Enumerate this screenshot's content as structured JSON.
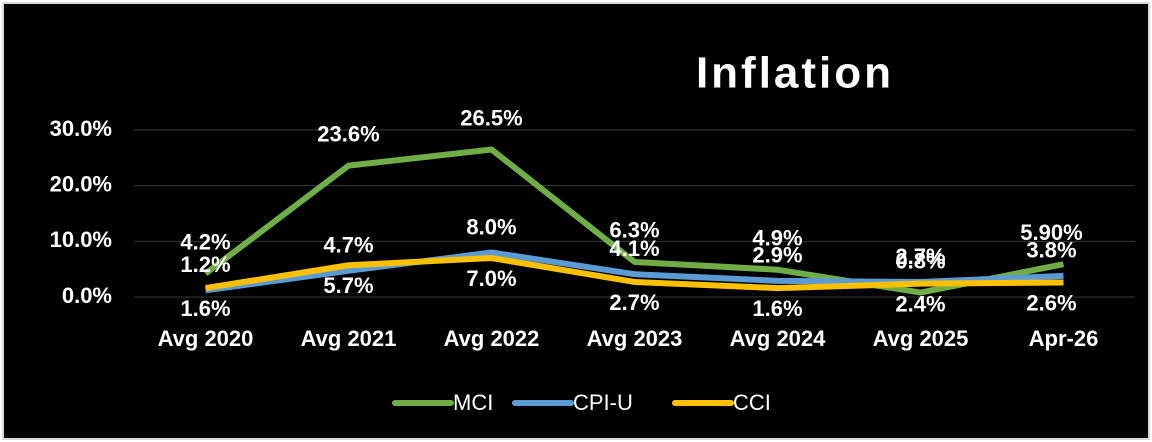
{
  "chart_data": {
    "type": "line",
    "title": "Inflation",
    "categories": [
      "Avg 2020",
      "Avg 2021",
      "Avg 2022",
      "Avg 2023",
      "Avg 2024",
      "Avg 2025",
      "Apr-26"
    ],
    "series": [
      {
        "name": "MCI",
        "color": "#70ad47",
        "values": [
          4.2,
          23.6,
          26.5,
          6.3,
          4.9,
          0.8,
          5.9
        ],
        "value_labels": [
          "4.2%",
          "23.6%",
          "26.5%",
          "6.3%",
          "4.9%",
          "0.8%",
          "5.90%"
        ]
      },
      {
        "name": "CPI-U",
        "color": "#5b9bd5",
        "values": [
          1.2,
          4.7,
          8.0,
          4.1,
          2.9,
          2.7,
          3.8
        ],
        "value_labels": [
          "1.2%",
          "4.7%",
          "8.0%",
          "4.1%",
          "2.9%",
          "2.7%",
          "3.8%"
        ]
      },
      {
        "name": "CCI",
        "color": "#ffc000",
        "values": [
          1.6,
          5.7,
          7.0,
          2.7,
          1.6,
          2.4,
          2.6
        ],
        "value_labels": [
          "1.6%",
          "5.7%",
          "7.0%",
          "2.7%",
          "1.6%",
          "2.4%",
          "2.6%"
        ]
      }
    ],
    "ylim": [
      0,
      30
    ],
    "yticks": [
      {
        "value": 0,
        "label": "0.0%"
      },
      {
        "value": 10,
        "label": "10.0%"
      },
      {
        "value": 20,
        "label": "20.0%"
      },
      {
        "value": 30,
        "label": "30.0%"
      }
    ],
    "grid": true,
    "legend": "bottom"
  }
}
